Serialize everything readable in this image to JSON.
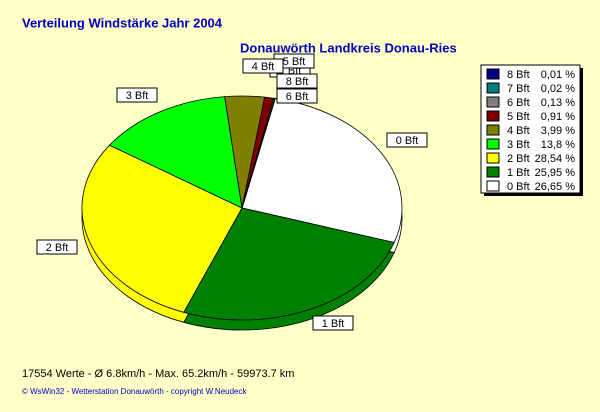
{
  "chart_data": {
    "type": "pie",
    "title": "Verteilung Windstärke  Jahr 2004",
    "subtitle": "Donauwörth Landkreis Donau-Ries",
    "categories": [
      "0 Bft",
      "1 Bft",
      "2 Bft",
      "3 Bft",
      "4 Bft",
      "5 Bft",
      "6 Bft",
      "7 Bft",
      "8 Bft"
    ],
    "values": [
      26.65,
      25.95,
      28.54,
      13.8,
      3.99,
      0.91,
      0.13,
      0.02,
      0.01
    ],
    "value_labels": [
      "26,65 %",
      "25,95 %",
      "28,54 %",
      "13,8 %",
      "3,99 %",
      "0,91 %",
      "0,13 %",
      "0,02 %",
      "0,01 %"
    ],
    "colors": [
      "#ffffff",
      "#008000",
      "#ffff00",
      "#00ff00",
      "#808000",
      "#800000",
      "#808080",
      "#008080",
      "#000080"
    ],
    "footer": "17554 Werte   -   Ø 6.8km/h  -  Max. 65.2km/h  -  59973.7 km",
    "copyright": "© WsWin32  -  Wetterstation Donauwörth  -  copyright W.Neudeck"
  }
}
